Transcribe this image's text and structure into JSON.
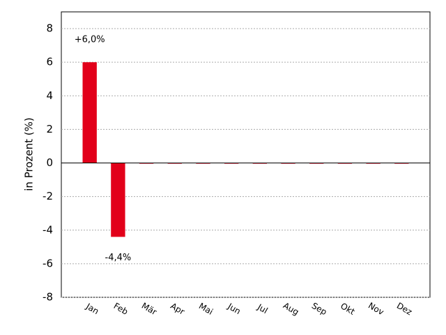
{
  "chart_data": {
    "type": "bar",
    "y_label": "in Prozent (%)",
    "categories": [
      "Jan",
      "Feb",
      "Mär",
      "Apr",
      "Mai",
      "Jun",
      "Jul",
      "Aug",
      "Sep",
      "Okt",
      "Nov",
      "Dez"
    ],
    "values": [
      6.0,
      -4.4,
      0,
      0,
      0,
      0,
      0,
      0,
      0,
      0,
      0,
      0
    ],
    "value_labels": [
      "+6,0%",
      "-4,4%",
      null,
      null,
      null,
      null,
      null,
      null,
      null,
      null,
      null,
      null
    ],
    "color": "#e2001a",
    "ylim": [
      -8,
      9
    ],
    "yticks": [
      -8,
      -6,
      -4,
      -2,
      0,
      2,
      4,
      6,
      8
    ],
    "grid": true
  }
}
